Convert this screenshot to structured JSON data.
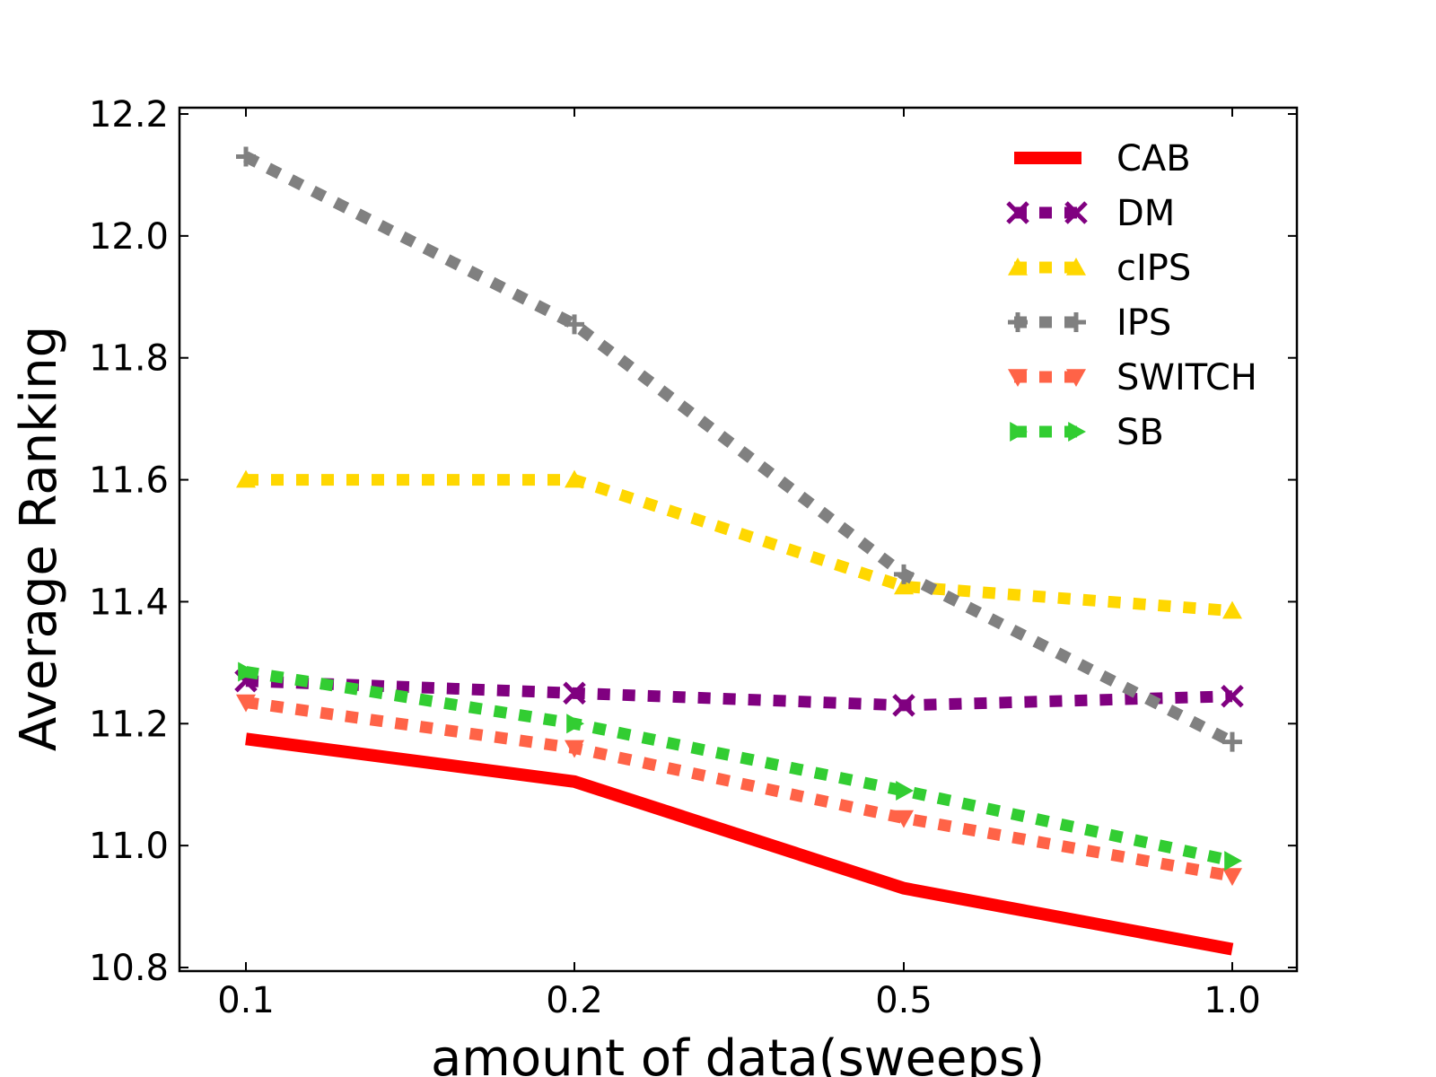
{
  "chart_data": {
    "type": "line",
    "title": "",
    "xlabel": "amount of data(sweeps)",
    "ylabel": "Average Ranking",
    "categories": [
      "0.1",
      "0.2",
      "0.5",
      "1.0"
    ],
    "ylim": [
      10.8,
      12.2
    ],
    "yticks": [
      "10.8",
      "11.0",
      "11.2",
      "11.4",
      "11.6",
      "11.8",
      "12.0",
      "12.2"
    ],
    "yticks_values": [
      10.8,
      11.0,
      11.2,
      11.4,
      11.6,
      11.8,
      12.0,
      12.2
    ],
    "grid": false,
    "legend_position": "top-right",
    "series": [
      {
        "name": "CAB",
        "values": [
          11.175,
          11.105,
          10.93,
          10.83
        ],
        "color": "#ff0000",
        "style": "solid",
        "marker": "none"
      },
      {
        "name": "DM",
        "values": [
          11.27,
          11.25,
          11.23,
          11.245
        ],
        "color": "#800080",
        "style": "dotted",
        "marker": "x"
      },
      {
        "name": "cIPS",
        "values": [
          11.6,
          11.6,
          11.425,
          11.385
        ],
        "color": "#ffd700",
        "style": "dotted",
        "marker": "triangle-up"
      },
      {
        "name": "IPS",
        "values": [
          12.13,
          11.855,
          11.445,
          11.17
        ],
        "color": "#808080",
        "style": "dotted",
        "marker": "plus"
      },
      {
        "name": "SWITCH",
        "values": [
          11.235,
          11.16,
          11.045,
          10.95
        ],
        "color": "#ff6347",
        "style": "dotted",
        "marker": "triangle-down"
      },
      {
        "name": "SB",
        "values": [
          11.285,
          11.2,
          11.09,
          10.975
        ],
        "color": "#32cd32",
        "style": "dotted",
        "marker": "triangle-right"
      }
    ]
  }
}
